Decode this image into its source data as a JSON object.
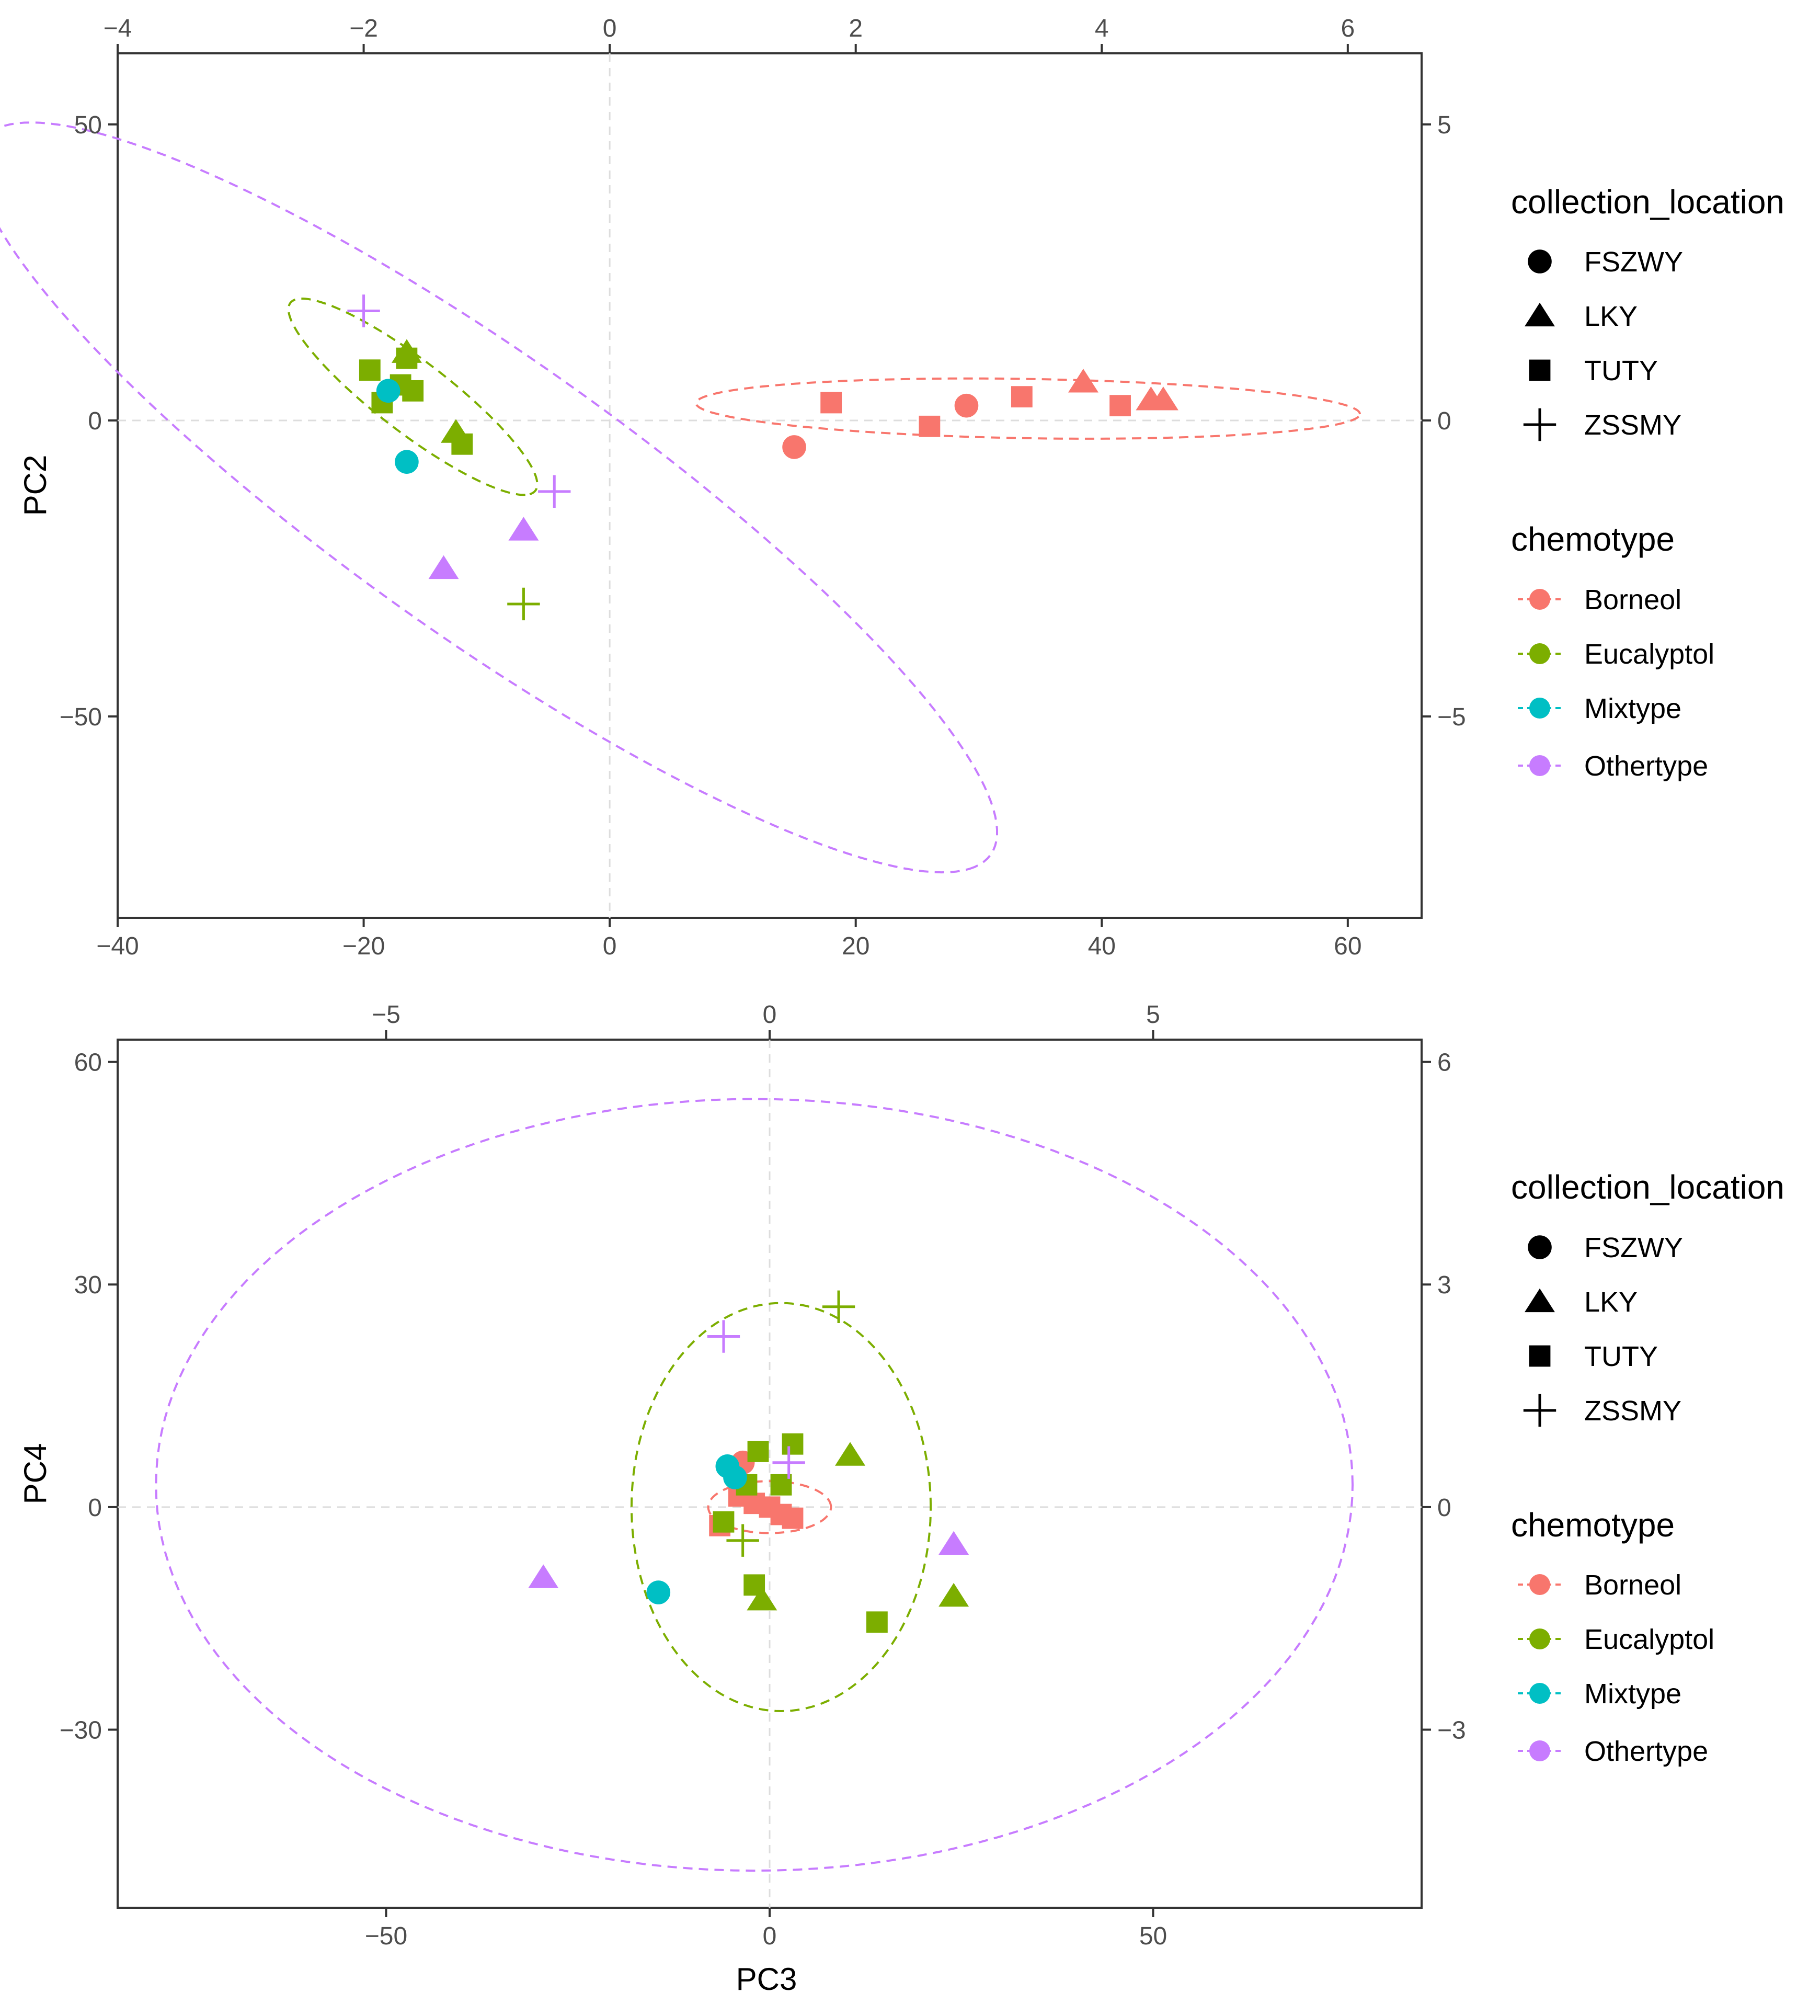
{
  "colors": {
    "Borneol": "#F8766D",
    "Eucalyptol": "#7CAE00",
    "Mixtype": "#00BFC4",
    "Othertype": "#C77CFF",
    "frame": "#333333",
    "guide": "#dddddd"
  },
  "legend": {
    "shape_title": "collection_location",
    "shapes": [
      {
        "label": "FSZWY",
        "shape": "circle"
      },
      {
        "label": "LKY",
        "shape": "triangle"
      },
      {
        "label": "TUTY",
        "shape": "square"
      },
      {
        "label": "ZSSMY",
        "shape": "plus"
      }
    ],
    "color_title": "chemotype",
    "colors": [
      "Borneol",
      "Eucalyptol",
      "Mixtype",
      "Othertype"
    ]
  },
  "chart_data": [
    {
      "type": "scatter",
      "title": "",
      "xlabel": "",
      "ylabel": "PC2",
      "xlim": [
        -40,
        66
      ],
      "ylim": [
        -84,
        62
      ],
      "x_ticks": [
        -40,
        -20,
        0,
        20,
        40,
        60
      ],
      "y_ticks": [
        -50,
        0,
        50
      ],
      "secondary_x_ticks": [
        -4,
        -2,
        0,
        2,
        4,
        6
      ],
      "secondary_y_ticks": [
        -5,
        0,
        5
      ],
      "grid": false,
      "zero_lines": true,
      "points": [
        {
          "x": 15,
          "y": -4.5,
          "shape": "circle",
          "group": "Borneol"
        },
        {
          "x": 18,
          "y": 3,
          "shape": "square",
          "group": "Borneol"
        },
        {
          "x": 26,
          "y": -1,
          "shape": "square",
          "group": "Borneol"
        },
        {
          "x": 29,
          "y": 2.5,
          "shape": "circle",
          "group": "Borneol"
        },
        {
          "x": 33.5,
          "y": 4,
          "shape": "square",
          "group": "Borneol"
        },
        {
          "x": 38.5,
          "y": 6.5,
          "shape": "triangle",
          "group": "Borneol"
        },
        {
          "x": 41.5,
          "y": 2.5,
          "shape": "square",
          "group": "Borneol"
        },
        {
          "x": 44,
          "y": 3.5,
          "shape": "triangle",
          "group": "Borneol"
        },
        {
          "x": 45,
          "y": 3.5,
          "shape": "triangle",
          "group": "Borneol"
        },
        {
          "x": -19.5,
          "y": 8.5,
          "shape": "square",
          "group": "Eucalyptol"
        },
        {
          "x": -16.5,
          "y": 11.5,
          "shape": "triangle",
          "group": "Eucalyptol"
        },
        {
          "x": -16.5,
          "y": 10.5,
          "shape": "square",
          "group": "Eucalyptol"
        },
        {
          "x": -16,
          "y": 5,
          "shape": "square",
          "group": "Eucalyptol"
        },
        {
          "x": -18.5,
          "y": 3,
          "shape": "square",
          "group": "Eucalyptol"
        },
        {
          "x": -17,
          "y": 6,
          "shape": "square",
          "group": "Eucalyptol"
        },
        {
          "x": -12.5,
          "y": -2,
          "shape": "triangle",
          "group": "Eucalyptol"
        },
        {
          "x": -12,
          "y": -4,
          "shape": "square",
          "group": "Eucalyptol"
        },
        {
          "x": -7,
          "y": -31,
          "shape": "plus",
          "group": "Eucalyptol"
        },
        {
          "x": -18,
          "y": 5,
          "shape": "circle",
          "group": "Mixtype"
        },
        {
          "x": -16.5,
          "y": -7,
          "shape": "circle",
          "group": "Mixtype"
        },
        {
          "x": -20,
          "y": 18.5,
          "shape": "plus",
          "group": "Othertype"
        },
        {
          "x": -4.5,
          "y": -12,
          "shape": "plus",
          "group": "Othertype"
        },
        {
          "x": -7,
          "y": -18.5,
          "shape": "triangle",
          "group": "Othertype"
        },
        {
          "x": -13.5,
          "y": -25,
          "shape": "triangle",
          "group": "Othertype"
        }
      ],
      "ellipses": [
        {
          "group": "Othertype",
          "cx": -10,
          "cy": -13,
          "rx": 74,
          "ry": 16,
          "angle": -58
        },
        {
          "group": "Eucalyptol",
          "cx": -16,
          "cy": 4,
          "rx": 19,
          "ry": 4,
          "angle": -60
        },
        {
          "group": "Borneol",
          "cx": 34,
          "cy": 2,
          "rx": 27,
          "ry": 5,
          "angle": -2
        }
      ]
    },
    {
      "type": "scatter",
      "title": "",
      "xlabel": "PC3",
      "ylabel": "PC4",
      "xlim": [
        -85,
        85
      ],
      "ylim": [
        -54,
        63
      ],
      "x_ticks": [
        -50,
        0,
        50
      ],
      "y_ticks": [
        -30,
        0,
        30,
        60
      ],
      "secondary_x_ticks": [
        -5,
        0,
        5
      ],
      "secondary_y_ticks": [
        -3,
        0,
        3,
        6
      ],
      "grid": false,
      "zero_lines": true,
      "points": [
        {
          "x": -3.5,
          "y": 6,
          "shape": "circle",
          "group": "Borneol"
        },
        {
          "x": -4,
          "y": 1.5,
          "shape": "square",
          "group": "Borneol"
        },
        {
          "x": -2,
          "y": 0.5,
          "shape": "square",
          "group": "Borneol"
        },
        {
          "x": 0,
          "y": 0,
          "shape": "square",
          "group": "Borneol"
        },
        {
          "x": 1.5,
          "y": -1,
          "shape": "square",
          "group": "Borneol"
        },
        {
          "x": 3,
          "y": -1.5,
          "shape": "square",
          "group": "Borneol"
        },
        {
          "x": -6.5,
          "y": -2.5,
          "shape": "square",
          "group": "Borneol"
        },
        {
          "x": -1.5,
          "y": 7.5,
          "shape": "square",
          "group": "Eucalyptol"
        },
        {
          "x": 3,
          "y": 8.5,
          "shape": "square",
          "group": "Eucalyptol"
        },
        {
          "x": 1.5,
          "y": 3,
          "shape": "square",
          "group": "Eucalyptol"
        },
        {
          "x": -3,
          "y": 3,
          "shape": "square",
          "group": "Eucalyptol"
        },
        {
          "x": -6,
          "y": -2,
          "shape": "square",
          "group": "Eucalyptol"
        },
        {
          "x": -2,
          "y": -10.5,
          "shape": "square",
          "group": "Eucalyptol"
        },
        {
          "x": -1,
          "y": -12.5,
          "shape": "triangle",
          "group": "Eucalyptol"
        },
        {
          "x": 14,
          "y": -15.5,
          "shape": "square",
          "group": "Eucalyptol"
        },
        {
          "x": 10.5,
          "y": 7,
          "shape": "triangle",
          "group": "Eucalyptol"
        },
        {
          "x": 24,
          "y": -12,
          "shape": "triangle",
          "group": "Eucalyptol"
        },
        {
          "x": 9,
          "y": 27,
          "shape": "plus",
          "group": "Eucalyptol"
        },
        {
          "x": -3.5,
          "y": -4.5,
          "shape": "plus",
          "group": "Eucalyptol"
        },
        {
          "x": -5.5,
          "y": 5.5,
          "shape": "circle",
          "group": "Mixtype"
        },
        {
          "x": -4.5,
          "y": 4,
          "shape": "circle",
          "group": "Mixtype"
        },
        {
          "x": -14.5,
          "y": -11.5,
          "shape": "circle",
          "group": "Mixtype"
        },
        {
          "x": -6,
          "y": 23,
          "shape": "plus",
          "group": "Othertype"
        },
        {
          "x": 2.5,
          "y": 6,
          "shape": "plus",
          "group": "Othertype"
        },
        {
          "x": -29.5,
          "y": -9.5,
          "shape": "triangle",
          "group": "Othertype"
        },
        {
          "x": 24,
          "y": -5,
          "shape": "triangle",
          "group": "Othertype"
        }
      ],
      "ellipses": [
        {
          "group": "Othertype",
          "cx": -2,
          "cy": 3,
          "rx": 78,
          "ry": 52,
          "angle": 0
        },
        {
          "group": "Eucalyptol",
          "cx": 1.5,
          "cy": 0,
          "rx": 19.5,
          "ry": 27.5,
          "angle": 0
        },
        {
          "group": "Borneol",
          "cx": 0,
          "cy": 0,
          "rx": 8,
          "ry": 3.5,
          "angle": 0
        }
      ]
    }
  ]
}
